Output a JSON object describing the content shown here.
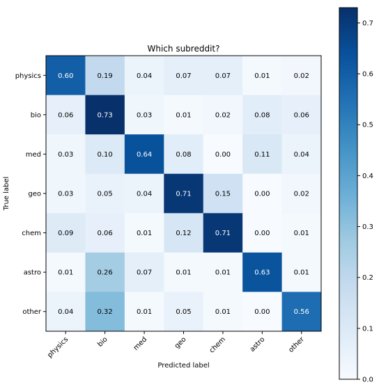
{
  "chart_data": {
    "type": "heatmap",
    "title": "Which subreddit?",
    "xlabel": "Predicted label",
    "ylabel": "True label",
    "x_categories": [
      "physics",
      "bio",
      "med",
      "geo",
      "chem",
      "astro",
      "other"
    ],
    "y_categories": [
      "physics",
      "bio",
      "med",
      "geo",
      "chem",
      "astro",
      "other"
    ],
    "values": [
      [
        0.6,
        0.19,
        0.04,
        0.07,
        0.07,
        0.01,
        0.02
      ],
      [
        0.06,
        0.73,
        0.03,
        0.01,
        0.02,
        0.08,
        0.06
      ],
      [
        0.03,
        0.1,
        0.64,
        0.08,
        0.0,
        0.11,
        0.04
      ],
      [
        0.03,
        0.05,
        0.04,
        0.71,
        0.15,
        0.0,
        0.02
      ],
      [
        0.09,
        0.06,
        0.01,
        0.12,
        0.71,
        0.0,
        0.01
      ],
      [
        0.01,
        0.26,
        0.07,
        0.01,
        0.01,
        0.63,
        0.01
      ],
      [
        0.04,
        0.32,
        0.01,
        0.05,
        0.01,
        0.0,
        0.56
      ]
    ],
    "colormap": "Blues",
    "vmin": 0.0,
    "vmax": 0.73,
    "colorbar_ticks": [
      0.0,
      0.1,
      0.2,
      0.3,
      0.4,
      0.5,
      0.6,
      0.7
    ],
    "colorbar_tick_labels": [
      "0.0",
      "0.1",
      "0.2",
      "0.3",
      "0.4",
      "0.5",
      "0.6",
      "0.7"
    ],
    "grid": false,
    "colors": {
      "low": "#f7fbff",
      "high": "#08306b"
    }
  }
}
